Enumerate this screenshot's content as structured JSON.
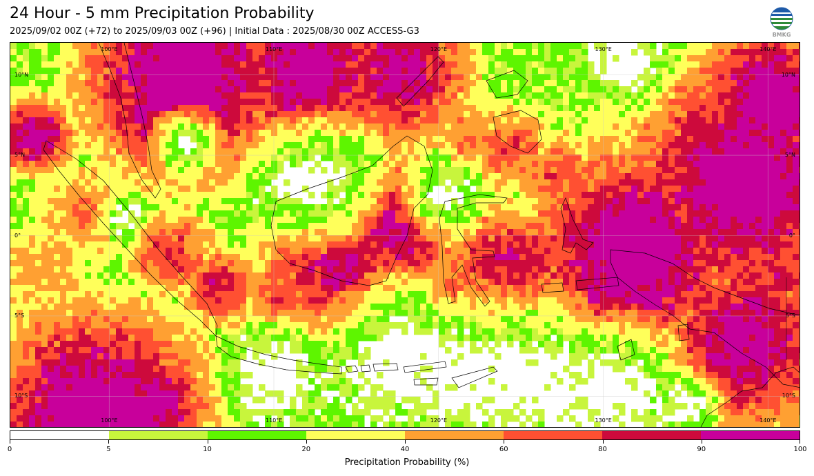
{
  "title": "24 Hour - 5 mm Precipitation Probability",
  "subtitle": "2025/09/02 00Z (+72) to 2025/09/03 00Z (+96) | Initial Data : 2025/08/30 00Z ACCESS-G3",
  "logo": {
    "text": "BMKG",
    "icon": "bmkg-globe-logo"
  },
  "map": {
    "projection": "lat-lon",
    "extent": {
      "lon": [
        94,
        142
      ],
      "lat": [
        -12,
        12
      ]
    },
    "gridlines": true,
    "lon_ticks": [
      {
        "lon": 100,
        "label": "100°E"
      },
      {
        "lon": 110,
        "label": "110°E"
      },
      {
        "lon": 120,
        "label": "120°E"
      },
      {
        "lon": 130,
        "label": "130°E"
      },
      {
        "lon": 140,
        "label": "140°E"
      }
    ],
    "lat_ticks": [
      {
        "lat": 10,
        "label": "10°N"
      },
      {
        "lat": 5,
        "label": "5°N"
      },
      {
        "lat": 0,
        "label": "0°"
      },
      {
        "lat": -5,
        "label": "5°S"
      },
      {
        "lat": -10,
        "label": "10°S"
      }
    ],
    "field_colors": [
      "#ffffff",
      "#c8f53c",
      "#5ef500",
      "#ffff5a",
      "#ffa032",
      "#ff5032",
      "#cd0a3c",
      "#c8009b"
    ],
    "coastline_color": "#000000"
  },
  "colorbar": {
    "label": "Precipitation Probability (%)",
    "boundaries": [
      "0",
      "5",
      "10",
      "20",
      "40",
      "60",
      "80",
      "90",
      "100"
    ],
    "colors": [
      "#ffffff",
      "#c8f53c",
      "#5ef500",
      "#ffff5a",
      "#ffa032",
      "#ff5032",
      "#cd0a3c",
      "#c8009b"
    ]
  }
}
